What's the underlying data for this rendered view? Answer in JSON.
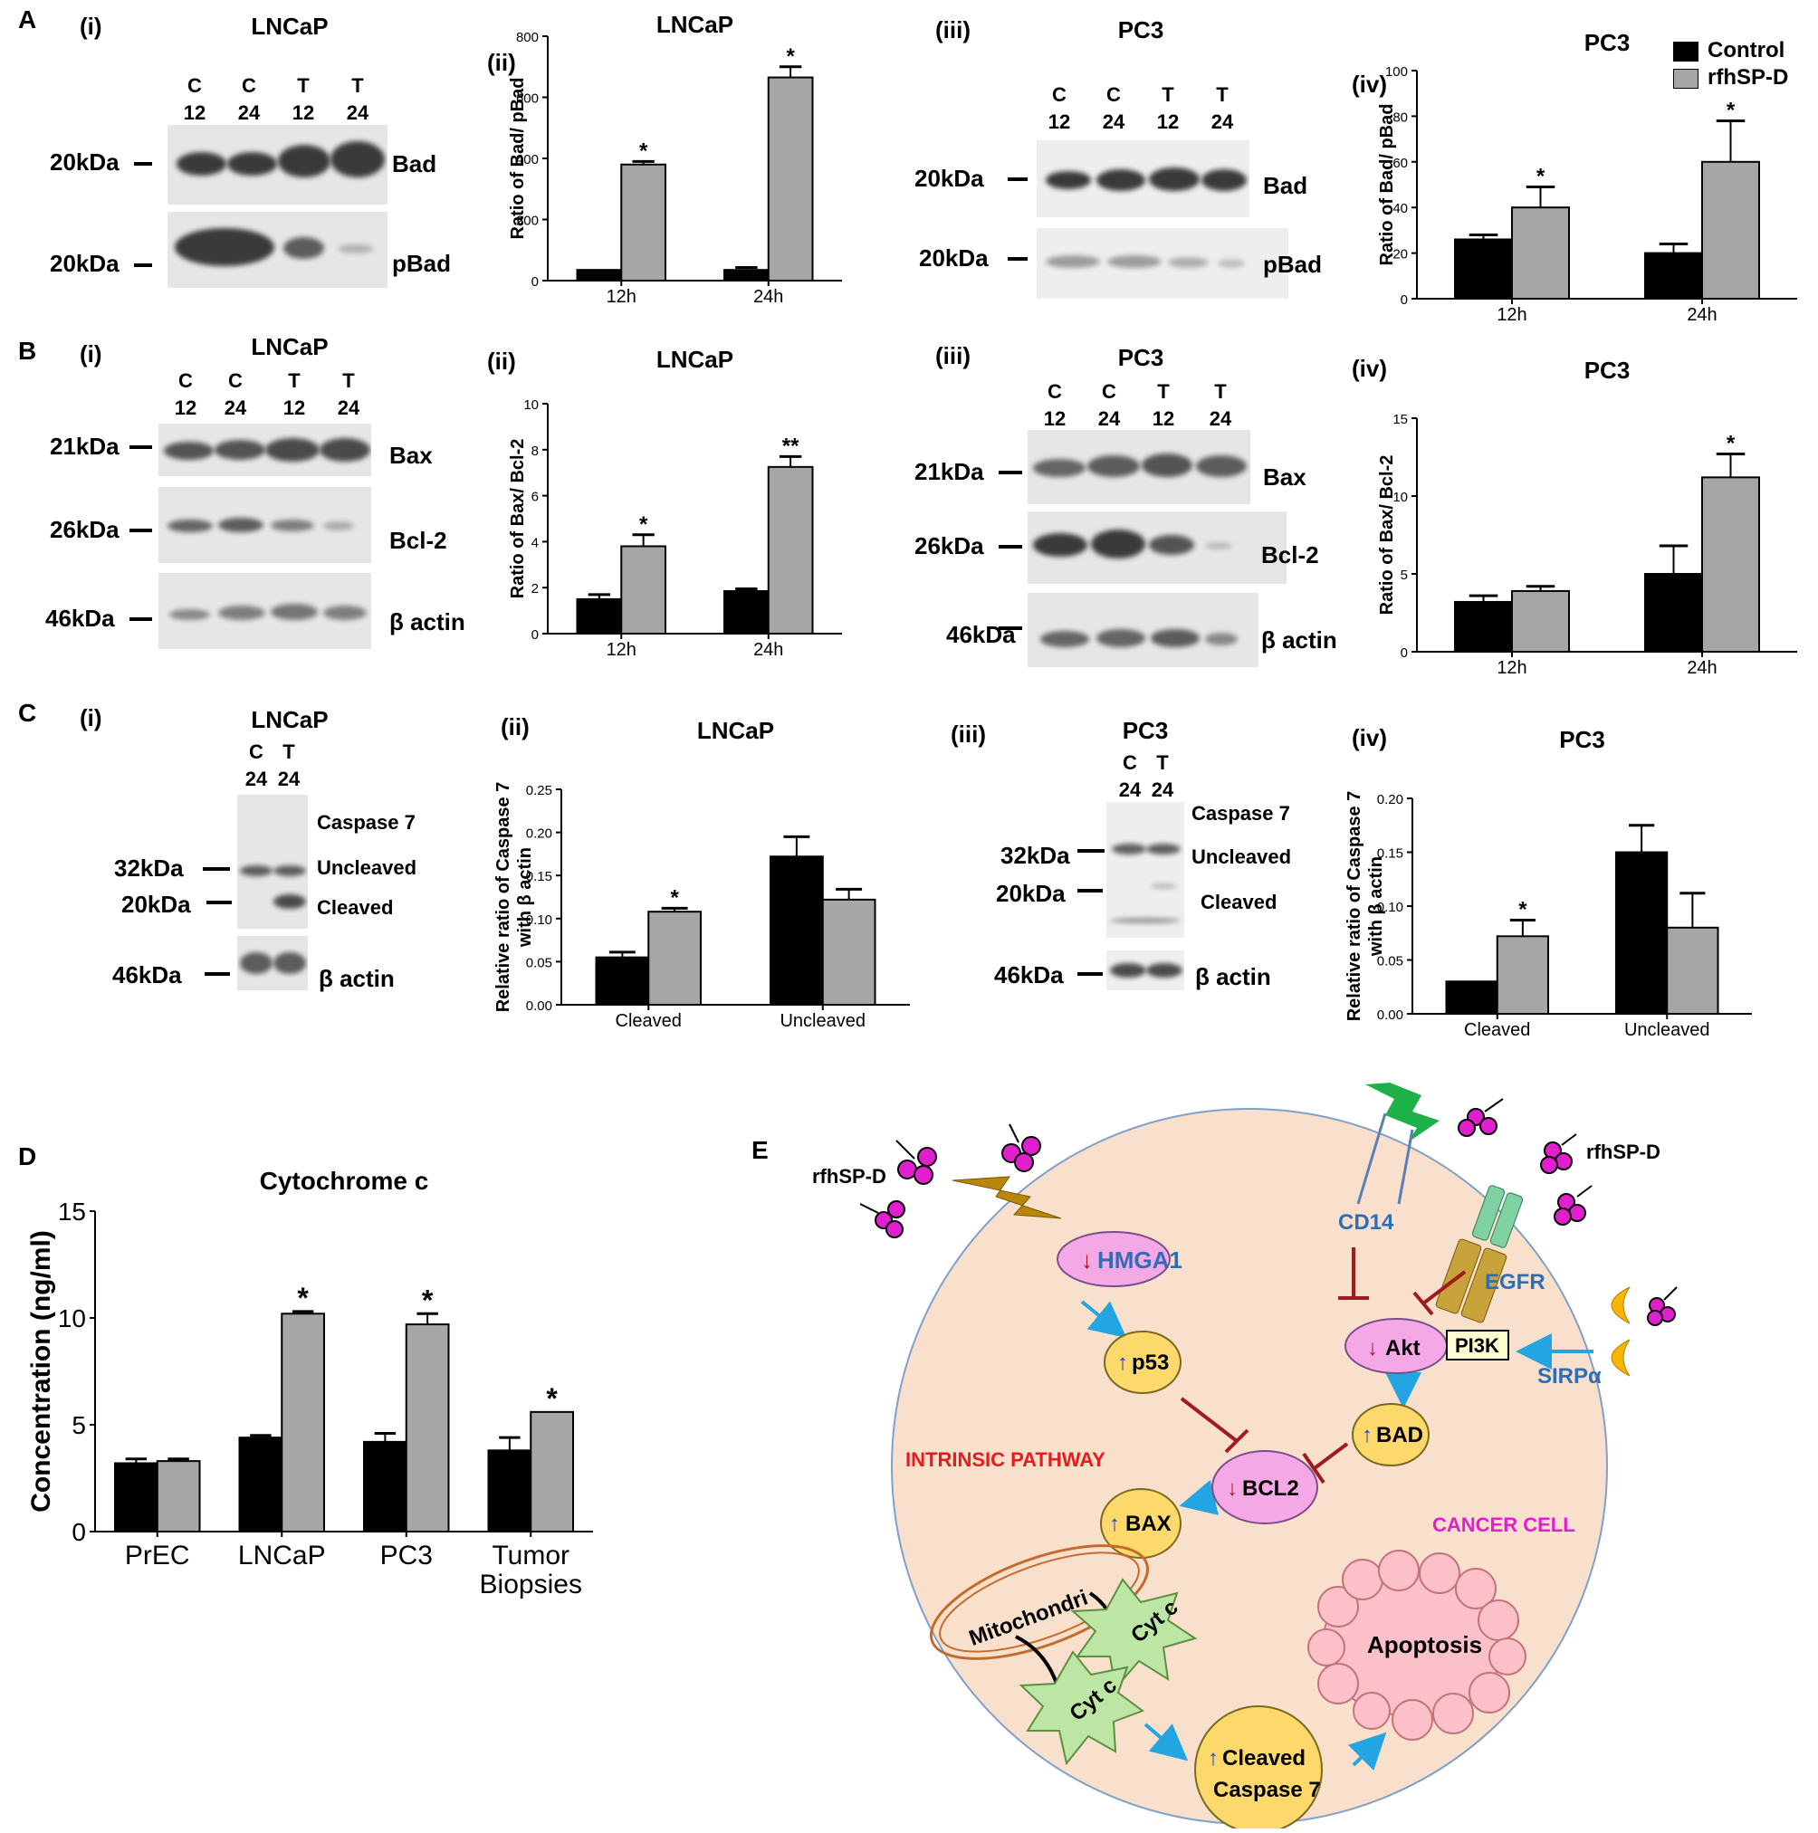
{
  "panels": {
    "A": "A",
    "B": "B",
    "C": "C",
    "D": "D",
    "E": "E"
  },
  "subs": {
    "i": "(i)",
    "ii": "(ii)",
    "iii": "(iii)",
    "iv": "(iv)"
  },
  "legend": {
    "control": "Control",
    "treated": "rfhSP-D",
    "colors": {
      "control": "#000000",
      "treated": "#a6a6a6"
    }
  },
  "lanes": {
    "c12": [
      "C",
      "12"
    ],
    "c24": [
      "C",
      "24"
    ],
    "t12": [
      "T",
      "12"
    ],
    "t24": [
      "T",
      "24"
    ]
  },
  "blots": {
    "A_i": {
      "title": "LNCaP",
      "rows": [
        {
          "kda": "20kDa",
          "label": "Bad"
        },
        {
          "kda": "20kDa",
          "label": "pBad"
        }
      ]
    },
    "A_iii": {
      "title": "PC3",
      "rows": [
        {
          "kda": "20kDa",
          "label": "Bad"
        },
        {
          "kda": "20kDa",
          "label": "pBad"
        }
      ]
    },
    "B_i": {
      "title": "LNCaP",
      "rows": [
        {
          "kda": "21kDa",
          "label": "Bax"
        },
        {
          "kda": "26kDa",
          "label": "Bcl-2"
        },
        {
          "kda": "46kDa",
          "label": "β actin"
        }
      ]
    },
    "B_iii": {
      "title": "PC3",
      "rows": [
        {
          "kda": "21kDa",
          "label": "Bax"
        },
        {
          "kda": "26kDa",
          "label": "Bcl-2"
        },
        {
          "kda": "46kDa",
          "label": "β actin"
        }
      ]
    },
    "C_i": {
      "title": "LNCaP",
      "lanes": [
        [
          "C",
          "24"
        ],
        [
          "T",
          "24"
        ]
      ],
      "kdas": [
        "32kDa",
        "20kDa",
        "46kDa"
      ],
      "labels": [
        "Caspase 7",
        "Uncleaved",
        "Cleaved",
        "β actin"
      ]
    },
    "C_iii": {
      "title": "PC3",
      "lanes": [
        [
          "C",
          "24"
        ],
        [
          "T",
          "24"
        ]
      ],
      "kdas": [
        "32kDa",
        "20kDa",
        "46kDa"
      ],
      "labels": [
        "Caspase 7",
        "Uncleaved",
        "Cleaved",
        "β actin"
      ]
    }
  },
  "chart_data": [
    {
      "id": "A_ii",
      "type": "bar",
      "title": "LNCaP",
      "ylabel": "Ratio of Bad/ pBad",
      "categories": [
        "12h",
        "24h"
      ],
      "ylim": [
        0,
        800
      ],
      "yticks": [
        "0",
        "200",
        "400",
        "600",
        "800"
      ],
      "series": [
        {
          "name": "Control",
          "values": [
            35,
            35
          ],
          "err": [
            0,
            8
          ]
        },
        {
          "name": "rfhSP-D",
          "values": [
            380,
            665
          ],
          "err": [
            10,
            35
          ]
        }
      ],
      "sig": [
        "",
        "*",
        "",
        "*"
      ]
    },
    {
      "id": "A_iv",
      "type": "bar",
      "title": "PC3",
      "ylabel": "Ratio of Bad/ pBad",
      "categories": [
        "12h",
        "24h"
      ],
      "ylim": [
        0,
        100
      ],
      "yticks": [
        "0",
        "20",
        "40",
        "60",
        "80",
        "100"
      ],
      "series": [
        {
          "name": "Control",
          "values": [
            26,
            20
          ],
          "err": [
            2,
            4
          ]
        },
        {
          "name": "rfhSP-D",
          "values": [
            40,
            60
          ],
          "err": [
            9,
            18
          ]
        }
      ],
      "sig": [
        "",
        "*",
        "",
        "*"
      ]
    },
    {
      "id": "B_ii",
      "type": "bar",
      "title": "LNCaP",
      "ylabel": "Ratio of Bax/ Bcl-2",
      "categories": [
        "12h",
        "24h"
      ],
      "ylim": [
        0,
        10
      ],
      "yticks": [
        "0",
        "2",
        "4",
        "6",
        "8",
        "10"
      ],
      "series": [
        {
          "name": "Control",
          "values": [
            1.5,
            1.85
          ],
          "err": [
            0.2,
            0.1
          ]
        },
        {
          "name": "rfhSP-D",
          "values": [
            3.8,
            7.25
          ],
          "err": [
            0.5,
            0.45
          ]
        }
      ],
      "sig": [
        "",
        "*",
        "",
        "**"
      ]
    },
    {
      "id": "B_iv",
      "type": "bar",
      "title": "PC3",
      "ylabel": "Ratio of Bax/ Bcl-2",
      "categories": [
        "12h",
        "24h"
      ],
      "ylim": [
        0,
        15
      ],
      "yticks": [
        "0",
        "5",
        "10",
        "15"
      ],
      "series": [
        {
          "name": "Control",
          "values": [
            3.2,
            5.0
          ],
          "err": [
            0.4,
            1.8
          ]
        },
        {
          "name": "rfhSP-D",
          "values": [
            3.9,
            11.2
          ],
          "err": [
            0.3,
            1.5
          ]
        }
      ],
      "sig": [
        "",
        "",
        "",
        "*"
      ]
    },
    {
      "id": "C_ii",
      "type": "bar",
      "title": "LNCaP",
      "ylabel": "Relative ratio of Caspase 7",
      "ylabel2": "with β actin",
      "categories": [
        "Cleaved",
        "Uncleaved"
      ],
      "ylim": [
        0,
        0.25
      ],
      "yticks": [
        "0.00",
        "0.05",
        "0.10",
        "0.15",
        "0.20",
        "0.25"
      ],
      "series": [
        {
          "name": "Control",
          "values": [
            0.055,
            0.172
          ],
          "err": [
            0.006,
            0.023
          ]
        },
        {
          "name": "rfhSP-D",
          "values": [
            0.108,
            0.122
          ],
          "err": [
            0.004,
            0.012
          ]
        }
      ],
      "sig": [
        "",
        "*",
        "",
        ""
      ]
    },
    {
      "id": "C_iv",
      "type": "bar",
      "title": "PC3",
      "ylabel": "Relative ratio of Caspase 7",
      "ylabel2": "with β actin",
      "categories": [
        "Cleaved",
        "Uncleaved"
      ],
      "ylim": [
        0,
        0.2
      ],
      "yticks": [
        "0.00",
        "0.05",
        "0.10",
        "0.15",
        "0.20"
      ],
      "series": [
        {
          "name": "Control",
          "values": [
            0.03,
            0.15
          ],
          "err": [
            0,
            0.025
          ]
        },
        {
          "name": "rfhSP-D",
          "values": [
            0.072,
            0.08
          ],
          "err": [
            0.015,
            0.032
          ]
        }
      ],
      "sig": [
        "",
        "*",
        "",
        ""
      ]
    },
    {
      "id": "D",
      "type": "bar",
      "title": "Cytochrome c",
      "ylabel": "Concentration (ng/ml)",
      "categories": [
        "PrEC",
        "LNCaP",
        "PC3",
        "Tumor Biopsies"
      ],
      "ylim": [
        0,
        15
      ],
      "yticks": [
        "0",
        "5",
        "10",
        "15"
      ],
      "series": [
        {
          "name": "Control",
          "values": [
            3.2,
            4.4,
            4.2,
            3.8
          ],
          "err": [
            0.2,
            0.1,
            0.4,
            0.6
          ]
        },
        {
          "name": "rfhSP-D",
          "values": [
            3.3,
            10.2,
            9.7,
            5.6
          ],
          "err": [
            0.1,
            0.1,
            0.5,
            0
          ]
        }
      ],
      "sig": [
        "",
        "",
        "",
        "*",
        "",
        "*",
        "",
        "*"
      ]
    }
  ],
  "diagram": {
    "rfhspd_left": "rfhSP-D",
    "rfhspd_right": "rfhSP-D",
    "hmga1": "HMGA1",
    "cd14": "CD14",
    "egfr": "EGFR",
    "sirpa": "SIRPα",
    "p53": "p53",
    "akt": "Akt",
    "pi3k": "PI3K",
    "bad": "BAD",
    "bcl2": "BCL2",
    "bax": "BAX",
    "intrinsic": "INTRINSIC PATHWAY",
    "cancer": "CANCER CELL",
    "mito": "Mitochondri",
    "cytc": "Cyt c",
    "apoptosis": "Apoptosis",
    "casp_1": "Cleaved",
    "casp_2": "Caspase 7"
  }
}
